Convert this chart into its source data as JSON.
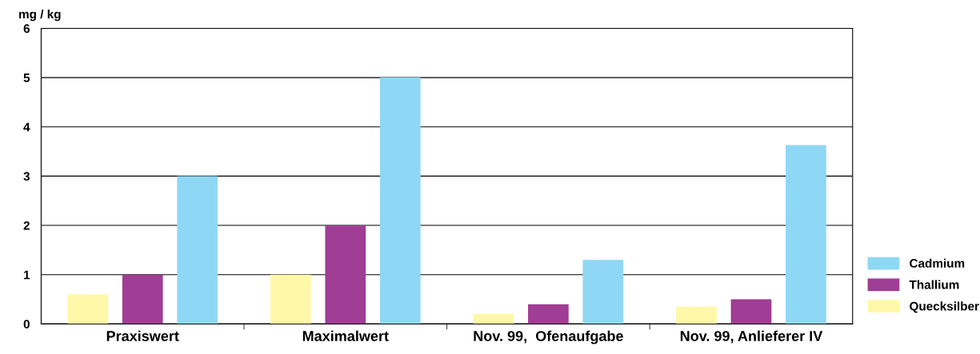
{
  "chart_data": {
    "type": "bar",
    "ylabel": "mg / kg",
    "categories": [
      "Praxiswert",
      "Maximalwert",
      "Nov. 99,  Ofenaufgabe",
      "Nov. 99, Anlieferer IV"
    ],
    "series": [
      {
        "name": "Quecksilber",
        "color": "#fff8a8",
        "values": [
          0.6,
          1,
          0.2,
          0.35
        ]
      },
      {
        "name": "Thallium",
        "color": "#a03d94",
        "values": [
          1,
          2,
          0.4,
          0.5
        ]
      },
      {
        "name": "Cadmium",
        "color": "#8fd8f5",
        "values": [
          3,
          5,
          1.3,
          3.63
        ]
      }
    ],
    "ylim": [
      0,
      6
    ],
    "yticks": [
      0,
      1,
      2,
      3,
      4,
      5,
      6
    ],
    "grid": "y",
    "legend": "bottom right"
  }
}
